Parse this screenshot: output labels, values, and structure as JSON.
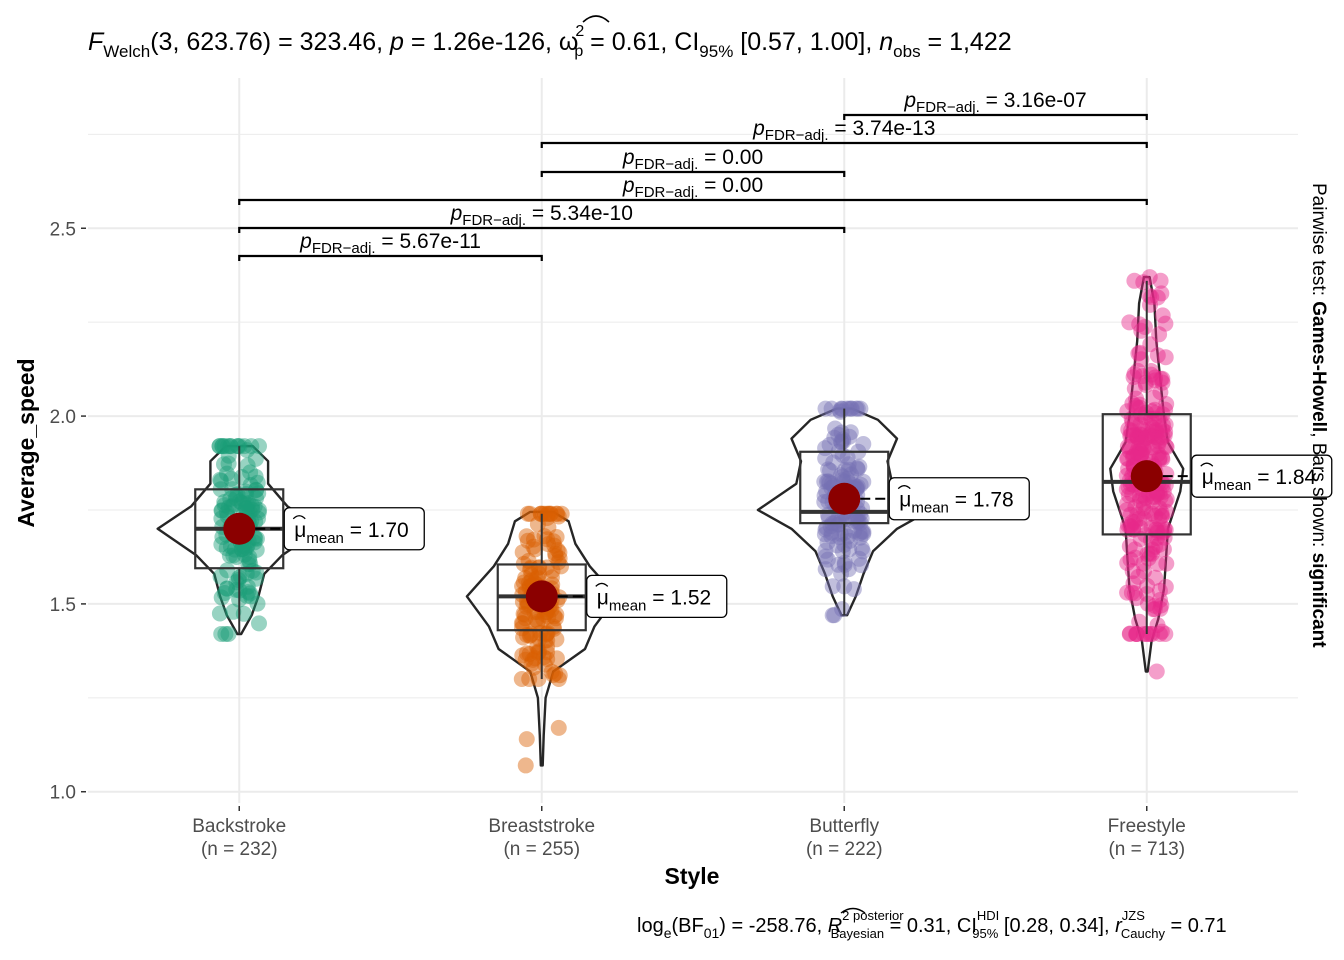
{
  "title_parts": {
    "f_symbol": "F",
    "f_sub": "Welch",
    "f_args": "(3, 623.76)",
    "f_value": " = 323.46, ",
    "p_symbol": "p",
    "p_value": " = 1.26e-126, ",
    "omega_symbol": "ω",
    "omega_sup": "2",
    "omega_sub": "p",
    "omega_value": " = 0.61, CI",
    "ci_sub": "95%",
    "ci_value": " [0.57, 1.00], ",
    "n_symbol": "n",
    "n_sub": "obs",
    "n_value": " = 1,422"
  },
  "caption_parts": {
    "log_text": "log",
    "log_sub": "e",
    "bf_text": "(BF",
    "bf_sub": "01",
    "bf_value": ") = -258.76, ",
    "r_symbol": "R",
    "r_sup": "2 posterior",
    "r_sub": "Bayesian",
    "r_value": " = 0.31, CI",
    "hdi_sup": "HDI",
    "hdi_sub": "95%",
    "hdi_value": " [0.28, 0.34], ",
    "rc_symbol": "r",
    "rc_sup": "JZS",
    "rc_sub": "Cauchy",
    "rc_value": " = 0.71"
  },
  "subtitle_right": {
    "prefix": "Pairwise test: ",
    "test": "Games-Howell",
    "middle": ", Bars shown: ",
    "shown": "significant"
  },
  "mean_label": {
    "mu": "μ",
    "sub": "mean"
  },
  "pair_label": {
    "p": "p",
    "sub": "FDR−adj."
  },
  "colors": {
    "Backstroke": "#1B9E77",
    "Breaststroke": "#D95F02",
    "Butterfly": "#7570B3",
    "Freestyle": "#E7298A",
    "mean_point": "#8B0000",
    "grid": "#EBEBEB"
  },
  "chart_data": {
    "type": "violin-box-scatter",
    "xlabel": "Style",
    "ylabel": "Average_speed",
    "ylim": [
      0.97,
      2.9
    ],
    "yticks": [
      1.0,
      1.5,
      2.0,
      2.5
    ],
    "ytick_labels": [
      "1.0",
      "1.5",
      "2.0",
      "2.5"
    ],
    "grid": true,
    "groups": [
      {
        "name": "Backstroke",
        "n_label": "(n = 232)",
        "n": 232,
        "mean": 1.7,
        "mean_label": "1.70",
        "median": 1.7,
        "q1": 1.595,
        "q3": 1.805,
        "min": 1.42,
        "max": 1.92,
        "whisker_low": 1.42,
        "whisker_high": 1.92
      },
      {
        "name": "Breaststroke",
        "n_label": "(n = 255)",
        "n": 255,
        "mean": 1.52,
        "mean_label": "1.52",
        "median": 1.52,
        "q1": 1.43,
        "q3": 1.605,
        "min": 1.07,
        "max": 1.74,
        "whisker_low": 1.3,
        "whisker_high": 1.74
      },
      {
        "name": "Butterfly",
        "n_label": "(n = 222)",
        "n": 222,
        "mean": 1.78,
        "mean_label": "1.78",
        "median": 1.745,
        "q1": 1.715,
        "q3": 1.905,
        "min": 1.47,
        "max": 2.02,
        "whisker_low": 1.47,
        "whisker_high": 2.02
      },
      {
        "name": "Freestyle",
        "n_label": "(n = 713)",
        "n": 713,
        "mean": 1.84,
        "mean_label": "1.84",
        "median": 1.825,
        "q1": 1.685,
        "q3": 2.005,
        "min": 1.32,
        "max": 2.37,
        "whisker_low": 1.42,
        "whisker_high": 2.36
      }
    ],
    "pairwise": [
      {
        "from": "Backstroke",
        "to": "Breaststroke",
        "p_label": "5.67e-11"
      },
      {
        "from": "Backstroke",
        "to": "Butterfly",
        "p_label": "5.34e-10"
      },
      {
        "from": "Backstroke",
        "to": "Freestyle",
        "p_label": "0.00"
      },
      {
        "from": "Breaststroke",
        "to": "Butterfly",
        "p_label": "0.00"
      },
      {
        "from": "Breaststroke",
        "to": "Freestyle",
        "p_label": "3.74e-13"
      },
      {
        "from": "Butterfly",
        "to": "Freestyle",
        "p_label": "3.16e-07"
      }
    ]
  }
}
